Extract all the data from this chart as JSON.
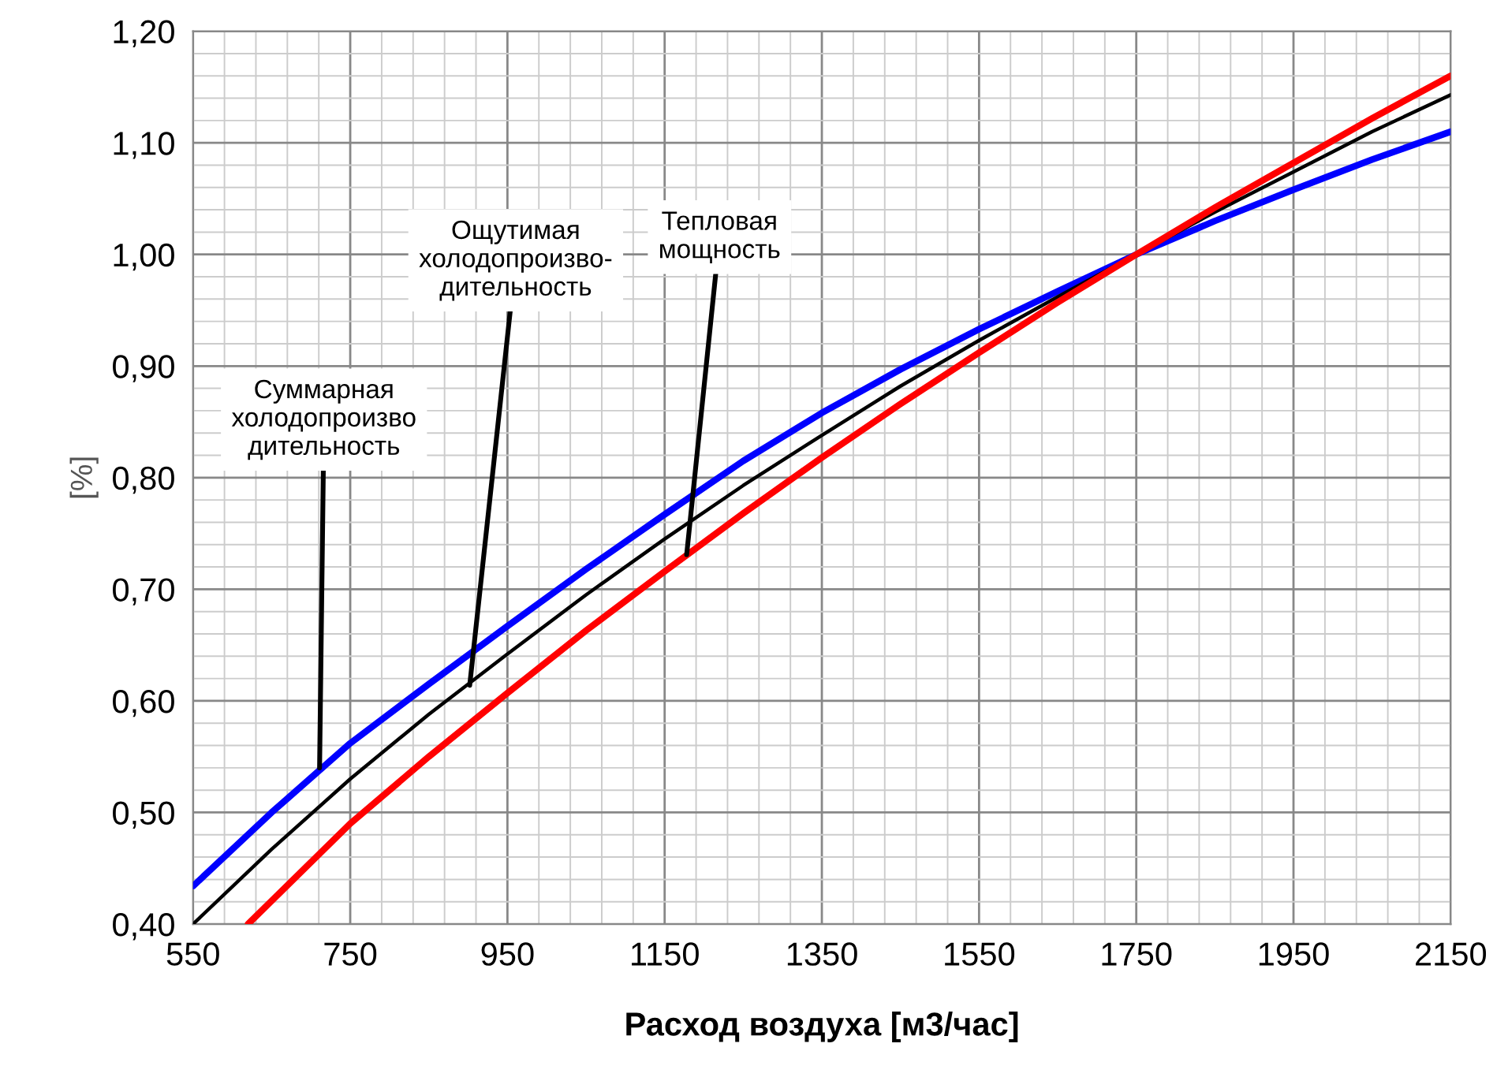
{
  "chart_data": {
    "type": "line",
    "xlabel": "Расход воздуха [м3/час]",
    "ylabel": "[%]",
    "xlim": [
      550,
      2150
    ],
    "xticks": [
      550,
      750,
      950,
      1150,
      1350,
      1550,
      1750,
      1950,
      2150
    ],
    "ylim": [
      0.4,
      1.2
    ],
    "yticks": [
      {
        "value": 0.4,
        "label": "0,40"
      },
      {
        "value": 0.5,
        "label": "0,50"
      },
      {
        "value": 0.6,
        "label": "0,60"
      },
      {
        "value": 0.7,
        "label": "0,70"
      },
      {
        "value": 0.8,
        "label": "0,80"
      },
      {
        "value": 0.9,
        "label": "0,90"
      },
      {
        "value": 1.0,
        "label": "1,00"
      },
      {
        "value": 1.1,
        "label": "1,10"
      },
      {
        "value": 1.2,
        "label": "1,20"
      }
    ],
    "grid": true,
    "legend": false,
    "marker": "none",
    "line_style": "solid",
    "series": [
      {
        "color": "#0000ff",
        "x": [
          550,
          650,
          750,
          850,
          950,
          1050,
          1150,
          1250,
          1350,
          1450,
          1550,
          1650,
          1750,
          1850,
          1950,
          2050,
          2150
        ],
        "values": [
          0.434,
          0.5,
          0.562,
          0.615,
          0.667,
          0.718,
          0.767,
          0.815,
          0.858,
          0.897,
          0.933,
          0.967,
          1.0,
          1.03,
          1.058,
          1.085,
          1.11
        ]
      },
      {
        "color": "#000000",
        "x": [
          550,
          650,
          750,
          850,
          950,
          1050,
          1150,
          1250,
          1350,
          1450,
          1550,
          1650,
          1750,
          1850,
          1950,
          2050,
          2150
        ],
        "values": [
          0.4,
          0.467,
          0.53,
          0.588,
          0.642,
          0.695,
          0.745,
          0.793,
          0.838,
          0.882,
          0.923,
          0.962,
          1.0,
          1.038,
          1.074,
          1.11,
          1.143
        ]
      },
      {
        "color": "#ff0000",
        "x": [
          620,
          750,
          850,
          950,
          1050,
          1150,
          1250,
          1350,
          1450,
          1550,
          1650,
          1750,
          1850,
          1950,
          2050,
          2150
        ],
        "values": [
          0.4,
          0.49,
          0.55,
          0.607,
          0.663,
          0.716,
          0.768,
          0.818,
          0.866,
          0.912,
          0.957,
          1.0,
          1.042,
          1.082,
          1.122,
          1.16
        ]
      }
    ],
    "annotations": [
      {
        "text": "Суммарная\nхолодопроизво\nдительность",
        "x": 711,
        "y": 0.54
      },
      {
        "text": "Ощутимая\nхолодопроизво-\nдительность",
        "x": 902,
        "y": 0.614
      },
      {
        "text": "Тепловая\nмощность",
        "x": 1178,
        "y": 0.731
      }
    ]
  }
}
